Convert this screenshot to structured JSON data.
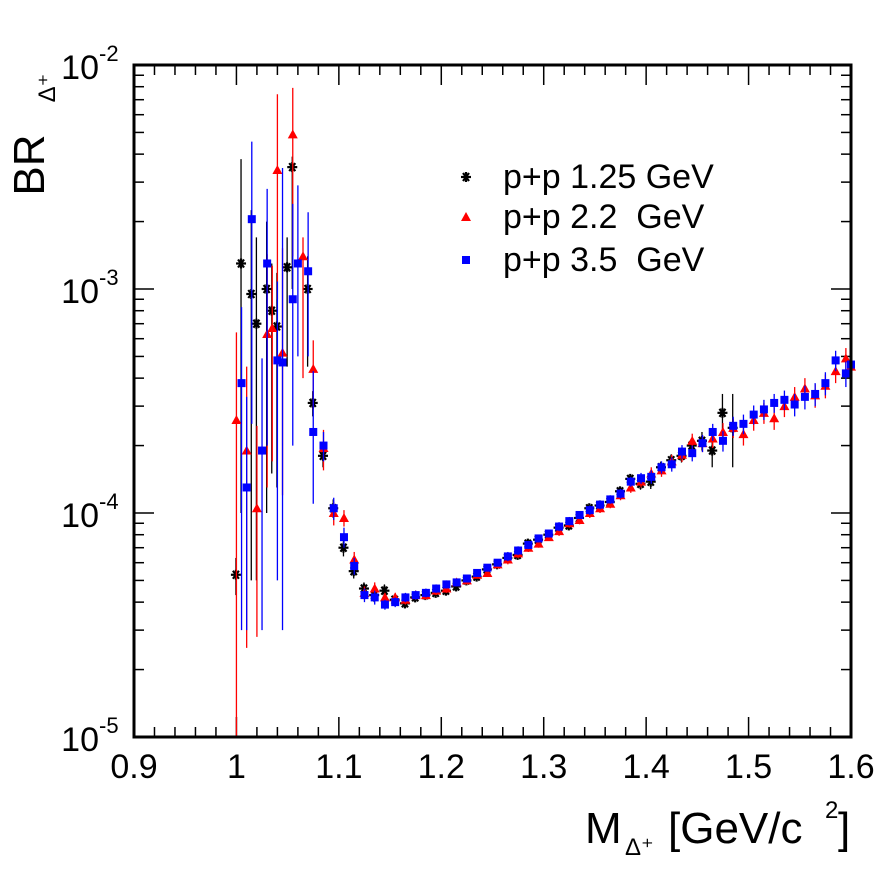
{
  "chart_data": {
    "type": "scatter",
    "title": "",
    "xlabel": {
      "main": "M",
      "sub": "Δ⁺",
      "unit": "[GeV/c",
      "unit_sup": "2",
      "unit_end": "]"
    },
    "ylabel": {
      "main": "BR",
      "sub": "Δ⁺"
    },
    "xlim": [
      0.9,
      1.6
    ],
    "ylim": [
      1e-05,
      0.01
    ],
    "yscale": "log",
    "grid": false,
    "legend_position": "top-right",
    "x_ticks": [
      "0.9",
      "1",
      "1.1",
      "1.2",
      "1.3",
      "1.4",
      "1.5",
      "1.6"
    ],
    "y_ticks": [
      {
        "base": "10",
        "exp": "-5"
      },
      {
        "base": "10",
        "exp": "-4"
      },
      {
        "base": "10",
        "exp": "-3"
      },
      {
        "base": "10",
        "exp": "-2"
      }
    ],
    "series": [
      {
        "name": "p+p 1.25 GeV",
        "color": "#000000",
        "marker": "star",
        "points": [
          [
            0.9995,
            5.3e-05,
            1e-05,
            1e-05
          ],
          [
            1.0045,
            0.0013,
            0.0025,
            0.0012
          ],
          [
            1.0145,
            0.00095,
            0.0013,
            0.0009
          ],
          [
            1.0195,
            0.0007,
            0.001,
            0.00065
          ],
          [
            1.0295,
            0.001,
            0.001,
            0.0009
          ],
          [
            1.0345,
            0.0008,
            0.0005,
            0.00065
          ],
          [
            1.0395,
            0.00068,
            0.0005,
            0.00055
          ],
          [
            1.0495,
            0.00125,
            0.00045,
            0.0008
          ],
          [
            1.0545,
            0.0035,
            0.0004,
            0.0025
          ],
          [
            1.0695,
            0.001,
            0.0004,
            0.00055
          ],
          [
            1.0745,
            0.00031,
            4e-05,
            4e-05
          ],
          [
            1.0845,
            0.00018,
            2e-05,
            2e-05
          ],
          [
            1.0945,
            0.000105,
            1e-05,
            1e-05
          ],
          [
            1.1045,
            7e-05,
            6e-06,
            6e-06
          ],
          [
            1.1145,
            5.5e-05,
            4e-06,
            4e-06
          ],
          [
            1.1245,
            4.6e-05,
            3e-06,
            3e-06
          ],
          [
            1.1345,
            4.3e-05,
            3e-06,
            3e-06
          ],
          [
            1.1445,
            4.5e-05,
            3e-06,
            3e-06
          ],
          [
            1.1545,
            4.1e-05,
            2e-06,
            2e-06
          ],
          [
            1.1645,
            3.95e-05,
            2e-06,
            2e-06
          ],
          [
            1.1745,
            4.2e-05,
            2e-06,
            2e-06
          ],
          [
            1.1845,
            4.3e-05,
            2e-06,
            2e-06
          ],
          [
            1.1945,
            4.4e-05,
            2e-06,
            2e-06
          ],
          [
            1.2045,
            4.5e-05,
            2e-06,
            2e-06
          ],
          [
            1.2145,
            4.7e-05,
            2e-06,
            2e-06
          ],
          [
            1.2245,
            5e-05,
            2e-06,
            2e-06
          ],
          [
            1.2345,
            5.2e-05,
            2e-06,
            2e-06
          ],
          [
            1.2445,
            5.6e-05,
            2e-06,
            2e-06
          ],
          [
            1.2545,
            5.9e-05,
            2e-06,
            2e-06
          ],
          [
            1.2645,
            6.3e-05,
            3e-06,
            3e-06
          ],
          [
            1.2745,
            6.5e-05,
            3e-06,
            3e-06
          ],
          [
            1.2845,
            7.3e-05,
            3e-06,
            3e-06
          ],
          [
            1.2945,
            7.6e-05,
            3e-06,
            3e-06
          ],
          [
            1.3045,
            8e-05,
            3e-06,
            3e-06
          ],
          [
            1.3145,
            8.6e-05,
            4e-06,
            4e-06
          ],
          [
            1.3245,
            8.8e-05,
            4e-06,
            4e-06
          ],
          [
            1.3345,
            9.5e-05,
            4e-06,
            4e-06
          ],
          [
            1.3445,
            0.000105,
            5e-06,
            5e-06
          ],
          [
            1.3545,
            0.000108,
            5e-06,
            5e-06
          ],
          [
            1.3645,
            0.000112,
            5e-06,
            5e-06
          ],
          [
            1.3745,
            0.000125,
            6e-06,
            6e-06
          ],
          [
            1.3845,
            0.000142,
            7e-06,
            7e-06
          ],
          [
            1.3945,
            0.000135,
            8e-06,
            8e-06
          ],
          [
            1.4045,
            0.000138,
            1e-05,
            1e-05
          ],
          [
            1.4145,
            0.00016,
            1e-05,
            1e-05
          ],
          [
            1.4245,
            0.000172,
            1.1e-05,
            1.1e-05
          ],
          [
            1.4345,
            0.00018,
            1.2e-05,
            1.2e-05
          ],
          [
            1.4445,
            0.0002,
            1.5e-05,
            1.5e-05
          ],
          [
            1.4545,
            0.00021,
            2e-05,
            2e-05
          ],
          [
            1.4645,
            0.00019,
            3e-05,
            3e-05
          ],
          [
            1.4745,
            0.00028,
            6e-05,
            6e-05
          ],
          [
            1.4845,
            0.00024,
            0.0001,
            8e-05
          ]
        ]
      },
      {
        "name": "p+p 2.2  GeV",
        "color": "#ff0000",
        "marker": "triangle",
        "points": [
          [
            1.0,
            0.00026,
            0.00038,
            0.00026
          ],
          [
            1.01,
            0.00019,
            0.00026,
            0.000165
          ],
          [
            1.02,
            0.000105,
            0.00014,
            7.7e-05
          ],
          [
            1.03,
            0.00063,
            0.0008,
            0.0005
          ],
          [
            1.035,
            0.00067,
            0.0006,
            0.0005
          ],
          [
            1.04,
            0.0034,
            0.004,
            0.0025
          ],
          [
            1.045,
            0.00052,
            0.001,
            0.0004
          ],
          [
            1.055,
            0.0049,
            0.003,
            0.0035
          ],
          [
            1.065,
            0.0014,
            0.0003,
            0.001
          ],
          [
            1.075,
            0.00044,
            0.00015,
            0.00015
          ],
          [
            1.085,
            0.000195,
            4e-05,
            4e-05
          ],
          [
            1.095,
            0.0001,
            1.2e-05,
            1.2e-05
          ],
          [
            1.105,
            9.5e-05,
            8e-06,
            8e-06
          ],
          [
            1.115,
            6.2e-05,
            5e-06,
            5e-06
          ],
          [
            1.125,
            4.4e-05,
            3e-06,
            3e-06
          ],
          [
            1.135,
            4.6e-05,
            3e-06,
            3e-06
          ],
          [
            1.145,
            4.2e-05,
            2e-06,
            2e-06
          ],
          [
            1.155,
            4.2e-05,
            2e-06,
            2e-06
          ],
          [
            1.165,
            4.1e-05,
            2e-06,
            2e-06
          ],
          [
            1.175,
            4.3e-05,
            2e-06,
            2e-06
          ],
          [
            1.185,
            4.3e-05,
            2e-06,
            2e-06
          ],
          [
            1.195,
            4.5e-05,
            2e-06,
            2e-06
          ],
          [
            1.205,
            4.6e-05,
            2e-06,
            2e-06
          ],
          [
            1.215,
            4.9e-05,
            2e-06,
            2e-06
          ],
          [
            1.225,
            5e-05,
            2e-06,
            2e-06
          ],
          [
            1.235,
            5.3e-05,
            2e-06,
            2e-06
          ],
          [
            1.245,
            5.4e-05,
            2e-06,
            2e-06
          ],
          [
            1.255,
            5.9e-05,
            2e-06,
            2e-06
          ],
          [
            1.265,
            6.2e-05,
            3e-06,
            3e-06
          ],
          [
            1.275,
            6.6e-05,
            3e-06,
            3e-06
          ],
          [
            1.285,
            7e-05,
            3e-06,
            3e-06
          ],
          [
            1.295,
            7.3e-05,
            3e-06,
            3e-06
          ],
          [
            1.305,
            7.8e-05,
            3e-06,
            3e-06
          ],
          [
            1.315,
            8.3e-05,
            4e-06,
            4e-06
          ],
          [
            1.325,
            9e-05,
            4e-06,
            4e-06
          ],
          [
            1.335,
            9.3e-05,
            4e-06,
            4e-06
          ],
          [
            1.345,
            0.0001,
            5e-06,
            5e-06
          ],
          [
            1.355,
            0.000105,
            5e-06,
            5e-06
          ],
          [
            1.365,
            0.00011,
            5e-06,
            5e-06
          ],
          [
            1.375,
            0.00012,
            6e-06,
            6e-06
          ],
          [
            1.385,
            0.00013,
            7e-06,
            7e-06
          ],
          [
            1.395,
            0.000138,
            8e-06,
            8e-06
          ],
          [
            1.405,
            0.00015,
            1e-05,
            1e-05
          ],
          [
            1.415,
            0.000155,
            1e-05,
            1e-05
          ],
          [
            1.425,
            0.00017,
            1.2e-05,
            1.2e-05
          ],
          [
            1.435,
            0.000182,
            1.3e-05,
            1.3e-05
          ],
          [
            1.445,
            0.00021,
            1.6e-05,
            1.6e-05
          ],
          [
            1.455,
            0.000205,
            1.8e-05,
            1.8e-05
          ],
          [
            1.465,
            0.000215,
            2e-05,
            2e-05
          ],
          [
            1.475,
            0.00023,
            2.2e-05,
            2.2e-05
          ],
          [
            1.485,
            0.00024,
            2.4e-05,
            2.4e-05
          ],
          [
            1.495,
            0.000225,
            2.5e-05,
            2.5e-05
          ],
          [
            1.505,
            0.00026,
            2.7e-05,
            2.7e-05
          ],
          [
            1.515,
            0.00028,
            3e-05,
            3e-05
          ],
          [
            1.525,
            0.000265,
            3e-05,
            3e-05
          ],
          [
            1.535,
            0.0003,
            3.2e-05,
            3.2e-05
          ],
          [
            1.545,
            0.00033,
            3.5e-05,
            3.5e-05
          ],
          [
            1.555,
            0.00036,
            4e-05,
            4e-05
          ],
          [
            1.565,
            0.000335,
            4e-05,
            4e-05
          ],
          [
            1.575,
            0.00037,
            4.5e-05,
            4.5e-05
          ],
          [
            1.585,
            0.00043,
            5e-05,
            5e-05
          ],
          [
            1.595,
            0.00049,
            5.5e-05,
            5.5e-05
          ],
          [
            1.6,
            0.00045,
            5.5e-05,
            5.5e-05
          ]
        ]
      },
      {
        "name": "p+p 3.5  GeV",
        "color": "#0000ff",
        "marker": "square",
        "points": [
          [
            1.005,
            0.00038,
            0.00045,
            0.00035
          ],
          [
            1.01,
            0.00013,
            0.0002,
            0.0001
          ],
          [
            1.015,
            0.00205,
            0.0025,
            0.0018
          ],
          [
            1.025,
            0.00019,
            0.0003,
            0.00016
          ],
          [
            1.03,
            0.0013,
            0.0015,
            0.0011
          ],
          [
            1.04,
            0.00048,
            0.0006,
            0.00043
          ],
          [
            1.045,
            0.00047,
            0.003,
            0.00044
          ],
          [
            1.055,
            0.0009,
            0.0015,
            0.0007
          ],
          [
            1.06,
            0.0013,
            0.0016,
            0.0008
          ],
          [
            1.07,
            0.0012,
            0.001,
            0.0007
          ],
          [
            1.075,
            0.00023,
            0.0002,
            0.00012
          ],
          [
            1.085,
            0.0002,
            3e-05,
            3e-05
          ],
          [
            1.095,
            0.000105,
            1.2e-05,
            1.2e-05
          ],
          [
            1.105,
            7.8e-05,
            8e-06,
            8e-06
          ],
          [
            1.115,
            5.8e-05,
            5e-06,
            5e-06
          ],
          [
            1.125,
            4.3e-05,
            3e-06,
            3e-06
          ],
          [
            1.135,
            4.2e-05,
            3e-06,
            3e-06
          ],
          [
            1.145,
            3.9e-05,
            2e-06,
            2e-06
          ],
          [
            1.155,
            4e-05,
            2e-06,
            2e-06
          ],
          [
            1.165,
            4.2e-05,
            2e-06,
            2e-06
          ],
          [
            1.175,
            4.3e-05,
            2e-06,
            2e-06
          ],
          [
            1.185,
            4.4e-05,
            2e-06,
            2e-06
          ],
          [
            1.195,
            4.6e-05,
            2e-06,
            2e-06
          ],
          [
            1.205,
            4.8e-05,
            2e-06,
            2e-06
          ],
          [
            1.215,
            4.9e-05,
            2e-06,
            2e-06
          ],
          [
            1.225,
            5.1e-05,
            2e-06,
            2e-06
          ],
          [
            1.235,
            5.4e-05,
            2e-06,
            2e-06
          ],
          [
            1.245,
            5.7e-05,
            2e-06,
            2e-06
          ],
          [
            1.255,
            6e-05,
            2e-06,
            2e-06
          ],
          [
            1.265,
            6.4e-05,
            3e-06,
            3e-06
          ],
          [
            1.275,
            6.8e-05,
            3e-06,
            3e-06
          ],
          [
            1.285,
            7.2e-05,
            3e-06,
            3e-06
          ],
          [
            1.295,
            7.7e-05,
            3e-06,
            3e-06
          ],
          [
            1.305,
            8.1e-05,
            3e-06,
            3e-06
          ],
          [
            1.315,
            8.7e-05,
            4e-06,
            4e-06
          ],
          [
            1.325,
            9.2e-05,
            4e-06,
            4e-06
          ],
          [
            1.335,
            9.8e-05,
            4e-06,
            4e-06
          ],
          [
            1.345,
            0.000103,
            5e-06,
            5e-06
          ],
          [
            1.355,
            0.000109,
            5e-06,
            5e-06
          ],
          [
            1.365,
            0.000115,
            5e-06,
            5e-06
          ],
          [
            1.375,
            0.000122,
            6e-06,
            6e-06
          ],
          [
            1.385,
            0.000138,
            7e-06,
            7e-06
          ],
          [
            1.395,
            0.000143,
            8e-06,
            8e-06
          ],
          [
            1.405,
            0.000145,
            1e-05,
            1e-05
          ],
          [
            1.415,
            0.00016,
            1e-05,
            1e-05
          ],
          [
            1.425,
            0.000165,
            1.2e-05,
            1.2e-05
          ],
          [
            1.435,
            0.000188,
            1.3e-05,
            1.3e-05
          ],
          [
            1.445,
            0.000185,
            1.5e-05,
            1.5e-05
          ],
          [
            1.455,
            0.000205,
            1.8e-05,
            1.8e-05
          ],
          [
            1.465,
            0.00023,
            2e-05,
            2e-05
          ],
          [
            1.475,
            0.00021,
            2.2e-05,
            2.2e-05
          ],
          [
            1.485,
            0.000245,
            2.4e-05,
            2.4e-05
          ],
          [
            1.495,
            0.00025,
            2.5e-05,
            2.5e-05
          ],
          [
            1.505,
            0.000275,
            2.7e-05,
            2.7e-05
          ],
          [
            1.515,
            0.00029,
            3e-05,
            3e-05
          ],
          [
            1.525,
            0.00031,
            3e-05,
            3e-05
          ],
          [
            1.535,
            0.00032,
            3.2e-05,
            3.2e-05
          ],
          [
            1.545,
            0.000305,
            3.5e-05,
            3.5e-05
          ],
          [
            1.555,
            0.00033,
            4e-05,
            4e-05
          ],
          [
            1.565,
            0.00034,
            4e-05,
            4e-05
          ],
          [
            1.575,
            0.00038,
            4.5e-05,
            4.5e-05
          ],
          [
            1.585,
            0.00048,
            5e-05,
            5e-05
          ],
          [
            1.595,
            0.00042,
            5.5e-05,
            5.5e-05
          ],
          [
            1.6,
            0.00046,
            5.5e-05,
            5.5e-05
          ]
        ]
      }
    ]
  }
}
